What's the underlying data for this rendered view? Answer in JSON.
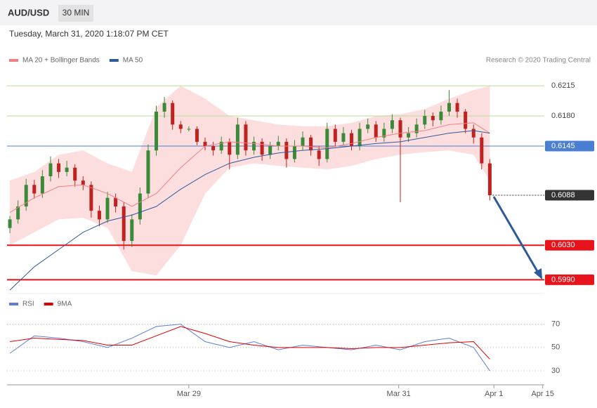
{
  "header": {
    "symbol": "AUD/USD",
    "interval": "30 MIN",
    "timestamp": "Tuesday, March 31, 2020 1:18:07 PM CET"
  },
  "chart_data": [
    {
      "type": "candlestick",
      "source": "Research © 2020 Trading Central",
      "x": [
        0,
        1,
        2,
        3,
        4,
        5,
        6,
        7,
        8,
        9,
        10,
        11,
        12,
        13,
        14,
        15,
        16,
        17,
        18,
        19,
        20,
        21,
        22,
        23,
        24,
        25,
        26,
        27,
        28,
        29,
        30,
        31,
        32,
        33,
        34,
        35,
        36,
        37,
        38,
        39,
        40,
        41,
        42,
        43,
        44,
        45,
        46,
        47,
        48,
        49,
        50,
        51,
        52,
        53,
        54,
        55,
        56,
        57,
        58,
        59
      ],
      "open": [
        0.605,
        0.606,
        0.6075,
        0.61,
        0.609,
        0.611,
        0.6125,
        0.6115,
        0.612,
        0.6105,
        0.61,
        0.607,
        0.606,
        0.6085,
        0.6075,
        0.6035,
        0.606,
        0.609,
        0.614,
        0.6185,
        0.6195,
        0.617,
        0.6165,
        0.6165,
        0.615,
        0.6145,
        0.614,
        0.615,
        0.6135,
        0.617,
        0.614,
        0.615,
        0.6135,
        0.6145,
        0.615,
        0.613,
        0.6145,
        0.6155,
        0.614,
        0.613,
        0.6165,
        0.615,
        0.616,
        0.6145,
        0.6165,
        0.617,
        0.6155,
        0.6165,
        0.6175,
        0.6155,
        0.616,
        0.617,
        0.618,
        0.6175,
        0.6185,
        0.6195,
        0.6185,
        0.6165,
        0.6155,
        0.6125
      ],
      "high": [
        0.6064,
        0.6082,
        0.6107,
        0.6106,
        0.6117,
        0.6133,
        0.613,
        0.6128,
        0.6124,
        0.611,
        0.6104,
        0.6076,
        0.6092,
        0.609,
        0.608,
        0.6066,
        0.6097,
        0.6147,
        0.6192,
        0.6202,
        0.6198,
        0.6174,
        0.6168,
        0.6168,
        0.6155,
        0.615,
        0.6156,
        0.6154,
        0.6178,
        0.6174,
        0.6156,
        0.6154,
        0.615,
        0.6157,
        0.6154,
        0.6152,
        0.6162,
        0.6158,
        0.6145,
        0.6172,
        0.617,
        0.6167,
        0.6164,
        0.6172,
        0.6177,
        0.6174,
        0.6172,
        0.6182,
        0.6178,
        0.6167,
        0.6177,
        0.6187,
        0.6184,
        0.6192,
        0.621,
        0.62,
        0.6188,
        0.617,
        0.616,
        0.613
      ],
      "low": [
        0.6044,
        0.6055,
        0.607,
        0.6084,
        0.6085,
        0.6104,
        0.6108,
        0.611,
        0.6098,
        0.6094,
        0.6062,
        0.6052,
        0.6056,
        0.6068,
        0.6025,
        0.6028,
        0.6054,
        0.6085,
        0.6134,
        0.6178,
        0.6164,
        0.616,
        0.6162,
        0.6146,
        0.614,
        0.6134,
        0.6136,
        0.6118,
        0.613,
        0.6134,
        0.6135,
        0.6128,
        0.613,
        0.614,
        0.612,
        0.6126,
        0.614,
        0.6134,
        0.6122,
        0.6126,
        0.6144,
        0.6146,
        0.614,
        0.614,
        0.616,
        0.615,
        0.615,
        0.616,
        0.608,
        0.615,
        0.6155,
        0.6165,
        0.6168,
        0.617,
        0.618,
        0.6178,
        0.616,
        0.6148,
        0.6118,
        0.6082
      ],
      "close": [
        0.606,
        0.6075,
        0.61,
        0.609,
        0.611,
        0.6125,
        0.6115,
        0.612,
        0.6105,
        0.61,
        0.607,
        0.606,
        0.6085,
        0.6075,
        0.6035,
        0.606,
        0.609,
        0.614,
        0.6185,
        0.6195,
        0.617,
        0.6165,
        0.6165,
        0.615,
        0.6145,
        0.614,
        0.615,
        0.6135,
        0.617,
        0.614,
        0.615,
        0.6135,
        0.6145,
        0.615,
        0.613,
        0.6145,
        0.6155,
        0.614,
        0.613,
        0.6165,
        0.615,
        0.616,
        0.6145,
        0.6165,
        0.617,
        0.6155,
        0.6165,
        0.6175,
        0.6155,
        0.616,
        0.617,
        0.618,
        0.6175,
        0.6185,
        0.6195,
        0.6185,
        0.6165,
        0.6155,
        0.6125,
        0.6088
      ],
      "up_color": "#3a8a3a",
      "down_color": "#c0221f",
      "xlim": [
        -0.35,
        65.7
      ],
      "xticks": [
        {
          "value": 22,
          "label": "Mar 29"
        },
        {
          "value": 47.8,
          "label": "Mar 31"
        },
        {
          "value": 59.5,
          "label": "Apr 1"
        },
        {
          "value": 65.5,
          "label": "Apr 15"
        }
      ],
      "ylim": [
        0.5974,
        0.6233
      ],
      "series": [
        {
          "name": "MA 20 + Bollinger Bands",
          "color": "#f08080",
          "band_color": "#fddede",
          "x": [
            0,
            3,
            6,
            9,
            12,
            15,
            18,
            21,
            24,
            27,
            30,
            33,
            36,
            39,
            42,
            45,
            48,
            51,
            54,
            57,
            59
          ],
          "values": [
            0.6068,
            0.6085,
            0.6098,
            0.61,
            0.609,
            0.6075,
            0.609,
            0.612,
            0.6145,
            0.615,
            0.6148,
            0.6145,
            0.6145,
            0.6143,
            0.6148,
            0.6155,
            0.616,
            0.6163,
            0.617,
            0.6172,
            0.616
          ],
          "upper": [
            0.6105,
            0.6115,
            0.6135,
            0.614,
            0.6125,
            0.6115,
            0.619,
            0.6215,
            0.62,
            0.618,
            0.6175,
            0.617,
            0.6168,
            0.6168,
            0.6172,
            0.618,
            0.6182,
            0.6188,
            0.62,
            0.621,
            0.6215
          ],
          "lower": [
            0.603,
            0.6045,
            0.606,
            0.6062,
            0.605,
            0.6,
            0.5995,
            0.603,
            0.609,
            0.612,
            0.6125,
            0.6122,
            0.612,
            0.6118,
            0.6122,
            0.613,
            0.6135,
            0.6138,
            0.614,
            0.6135,
            0.6105
          ]
        },
        {
          "name": "MA 50",
          "color": "#2e5a9c",
          "x": [
            0,
            3,
            6,
            9,
            12,
            15,
            18,
            21,
            24,
            27,
            30,
            33,
            36,
            39,
            42,
            45,
            48,
            51,
            54,
            57,
            59
          ],
          "values": [
            0.5978,
            0.6005,
            0.6025,
            0.6045,
            0.6058,
            0.6065,
            0.6075,
            0.6095,
            0.6112,
            0.6125,
            0.6132,
            0.6137,
            0.614,
            0.6142,
            0.6145,
            0.6148,
            0.615,
            0.6155,
            0.616,
            0.6163,
            0.616
          ]
        }
      ],
      "levels": {
        "values": [
          0.6215,
          0.618,
          0.6145,
          0.6088,
          0.603,
          0.599
        ],
        "value_labels": [
          "0.6215",
          "0.6180",
          "0.6145",
          "0.6088",
          "0.6030",
          "0.5990"
        ],
        "colors": [
          "#b8dca0",
          "#b8dca0",
          "#4a7fd4",
          "#333333",
          "#e8141b",
          "#e8141b"
        ],
        "widths": [
          1,
          1,
          1,
          1,
          2,
          2
        ],
        "dashed": [
          false,
          false,
          false,
          true,
          false,
          false
        ],
        "label_boxes": [
          false,
          false,
          true,
          true,
          true,
          true
        ]
      }
    },
    {
      "type": "line",
      "ylim": [
        18,
        83
      ],
      "yticks": [
        30,
        50,
        70
      ],
      "grid": true,
      "series": [
        {
          "name": "RSI",
          "color": "#5b7fd6",
          "x": [
            0,
            3,
            6,
            9,
            12,
            15,
            18,
            21,
            24,
            27,
            30,
            33,
            36,
            39,
            42,
            45,
            48,
            51,
            54,
            57,
            59
          ],
          "values": [
            45,
            60,
            58,
            55,
            50,
            58,
            68,
            70,
            55,
            50,
            55,
            48,
            52,
            50,
            48,
            52,
            48,
            55,
            58,
            50,
            30
          ]
        },
        {
          "name": "9MA",
          "color": "#e00000",
          "x": [
            0,
            3,
            6,
            9,
            12,
            15,
            18,
            21,
            24,
            27,
            30,
            33,
            36,
            39,
            42,
            45,
            48,
            51,
            54,
            57,
            59
          ],
          "values": [
            55,
            58,
            57,
            56,
            52,
            52,
            60,
            68,
            62,
            55,
            52,
            50,
            50,
            50,
            49,
            50,
            50,
            52,
            54,
            55,
            40
          ]
        }
      ]
    }
  ]
}
